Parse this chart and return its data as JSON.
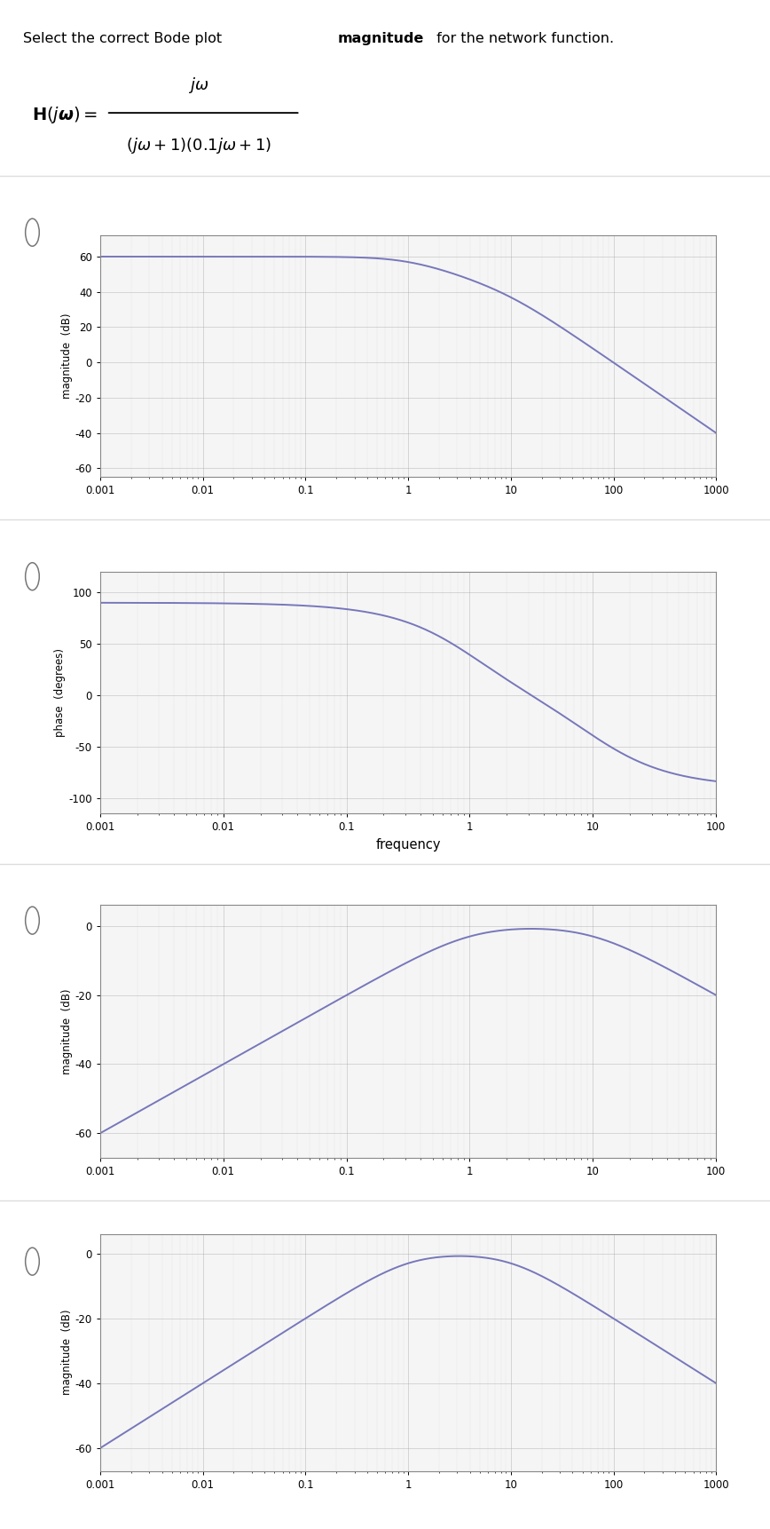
{
  "line_color": "#7777bb",
  "bg_color": "#ffffff",
  "plot1": {
    "ylabel": "magnitude  (dB)",
    "ylim": [
      -65,
      72
    ],
    "yticks": [
      -60,
      -40,
      -20,
      0,
      20,
      40,
      60
    ],
    "xlim_min": 0.001,
    "xlim_max": 1000,
    "xticks": [
      0.001,
      0.01,
      0.1,
      1,
      10,
      100,
      1000
    ],
    "xticklabels": [
      "0.001",
      "0.01",
      "0.1",
      "1",
      "10",
      "100",
      "1000"
    ]
  },
  "plot2": {
    "ylabel": "phase  (degrees)",
    "xlabel": "frequency",
    "ylim": [
      -115,
      120
    ],
    "yticks": [
      -100,
      -50,
      0,
      50,
      100
    ],
    "xlim_min": 0.001,
    "xlim_max": 100,
    "xticks": [
      0.001,
      0.01,
      0.1,
      1,
      10,
      100
    ],
    "xticklabels": [
      "0.001",
      "0.01",
      "0.1",
      "1",
      "10",
      "100"
    ]
  },
  "plot3": {
    "ylabel": "magnitude  (dB)",
    "ylim": [
      -67,
      6
    ],
    "yticks": [
      -60,
      -40,
      -20,
      0
    ],
    "xlim_min": 0.001,
    "xlim_max": 100,
    "xticks": [
      0.001,
      0.01,
      0.1,
      1,
      10,
      100
    ],
    "xticklabels": [
      "0.001",
      "0.01",
      "0.1",
      "1",
      "10",
      "100"
    ]
  },
  "plot4": {
    "ylabel": "magnitude  (dB)",
    "ylim": [
      -67,
      6
    ],
    "yticks": [
      -60,
      -40,
      -20,
      0
    ],
    "xlim_min": 0.001,
    "xlim_max": 1000,
    "xticks": [
      0.001,
      0.01,
      0.1,
      1,
      10,
      100,
      1000
    ],
    "xticklabels": [
      "0.001",
      "0.01",
      "0.1",
      "1",
      "10",
      "100",
      "1000"
    ]
  }
}
